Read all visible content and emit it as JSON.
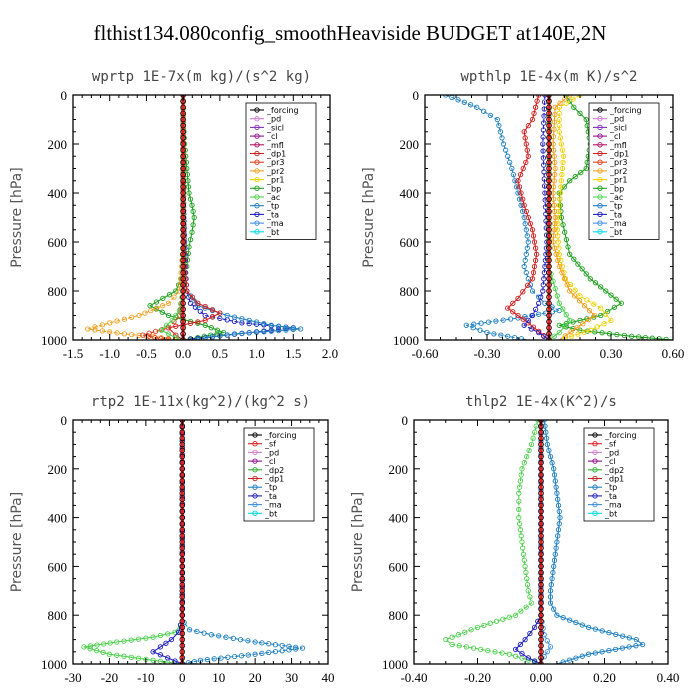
{
  "figure_title": "flthist134.080config_smoothHeaviside  BUDGET at140E,2N",
  "colors": {
    "forcing": "#000000",
    "sf": "#e02020",
    "pd": "#d080d0",
    "sicl": "#8030c0",
    "cl": "#901090",
    "mfl": "#b01060",
    "dp1": "#d02020",
    "dp2": "#30b030",
    "pr3": "#e04020",
    "pr2": "#f0a020",
    "pr1": "#f0d000",
    "bp": "#20a020",
    "ac": "#50d050",
    "tp": "#2080c0",
    "ta": "#2020c0",
    "ma": "#4090e0",
    "bt": "#00d8e8",
    "zero_line": "#e02020"
  },
  "chart_data": [
    {
      "type": "line",
      "title": "wprtp   1E-7x(m kg)/(s^2 kg)",
      "ylabel": "Pressure [hPa]",
      "xlim": [
        -1.5,
        2.0
      ],
      "ylim": [
        1000,
        0
      ],
      "xticks": [
        -1.5,
        -1.0,
        -0.5,
        0.0,
        0.5,
        1.0,
        1.5,
        2.0
      ],
      "xtick_labels": [
        "-1.5",
        "-1.0",
        "-0.5",
        "0.0",
        "0.5",
        "1.0",
        "1.5",
        "2.0"
      ],
      "yticks": [
        0,
        200,
        400,
        600,
        800,
        1000
      ],
      "ytick_labels": [
        "0",
        "200",
        "400",
        "600",
        "800",
        "1000"
      ],
      "legend": [
        "_forcing",
        "_pd",
        "_sicl",
        "_cl",
        "_mfl",
        "_dp1",
        "_pr3",
        "_pr2",
        "_pr1",
        "_bp",
        "_ac",
        "_tp",
        "_ta",
        "_ma",
        "_bt"
      ],
      "legend_keys": [
        "forcing",
        "pd",
        "sicl",
        "cl",
        "mfl",
        "dp1",
        "pr3",
        "pr2",
        "pr1",
        "bp",
        "ac",
        "tp",
        "ta",
        "ma",
        "bt"
      ],
      "legend_position": "top-right",
      "series": [
        {
          "key": "bp",
          "x": [
            0.0,
            0.0,
            0.02,
            0.05,
            0.08,
            0.12,
            0.15,
            0.12,
            0.08,
            0.05,
            -0.1,
            -0.45,
            -0.2,
            0.3,
            0.55,
            0.2,
            0.0
          ],
          "y": [
            0,
            100,
            200,
            300,
            400,
            450,
            500,
            560,
            620,
            700,
            800,
            860,
            900,
            940,
            970,
            990,
            1000
          ]
        },
        {
          "key": "ta",
          "x": [
            0.0,
            0.0,
            0.0,
            0.02,
            0.03,
            0.05,
            0.1,
            0.3,
            0.8,
            1.5,
            0.6,
            0.0
          ],
          "y": [
            0,
            200,
            400,
            600,
            700,
            800,
            850,
            900,
            930,
            950,
            980,
            1000
          ]
        },
        {
          "key": "tp",
          "x": [
            0.0,
            0.0,
            0.01,
            0.02,
            0.05,
            0.2,
            0.6,
            1.2,
            1.6,
            0.7,
            0.1
          ],
          "y": [
            0,
            300,
            500,
            700,
            800,
            860,
            900,
            940,
            955,
            975,
            1000
          ]
        },
        {
          "key": "pr2",
          "x": [
            0.0,
            0.0,
            0.0,
            -0.02,
            -0.05,
            -0.2,
            -0.6,
            -1.0,
            -1.3,
            -0.8,
            -0.3,
            0.0
          ],
          "y": [
            0,
            300,
            600,
            700,
            800,
            850,
            900,
            930,
            955,
            975,
            990,
            1000
          ]
        },
        {
          "key": "dp1",
          "x": [
            0.0,
            0.0,
            0.02,
            0.05,
            0.2,
            0.5,
            0.3,
            -0.2,
            -0.1,
            0.0
          ],
          "y": [
            0,
            500,
            700,
            800,
            850,
            890,
            920,
            950,
            980,
            1000
          ]
        },
        {
          "key": "pr3",
          "x": [
            0.0,
            0.0,
            0.0,
            -0.05,
            -0.2,
            -0.55,
            -0.3,
            0.0
          ],
          "y": [
            0,
            600,
            800,
            900,
            950,
            980,
            995,
            1000
          ]
        },
        {
          "key": "ac",
          "x": [
            0.0,
            0.0,
            0.0,
            -0.05,
            -0.15,
            -0.3,
            -0.1,
            0.0
          ],
          "y": [
            0,
            600,
            800,
            880,
            920,
            960,
            990,
            1000
          ]
        },
        {
          "key": "forcing",
          "x": [
            0.0,
            0.0
          ],
          "y": [
            0,
            1000
          ]
        }
      ]
    },
    {
      "type": "line",
      "title": "wpthlp   1E-4x(m K)/s^2",
      "ylabel": "Pressure [hPa]",
      "xlim": [
        -0.6,
        0.6
      ],
      "ylim": [
        1000,
        0
      ],
      "xticks": [
        -0.6,
        -0.3,
        0.0,
        0.3,
        0.6
      ],
      "xtick_labels": [
        "-0.60",
        "-0.30",
        "0.00",
        "0.30",
        "0.60"
      ],
      "yticks": [
        0,
        200,
        400,
        600,
        800,
        1000
      ],
      "ytick_labels": [
        "0",
        "200",
        "400",
        "600",
        "800",
        "1000"
      ],
      "legend": [
        "_forcing",
        "_pd",
        "_sicl",
        "_cl",
        "_mfl",
        "_dp1",
        "_pr3",
        "_pr2",
        "_pr1",
        "_bp",
        "_ac",
        "_tp",
        "_ta",
        "_ma",
        "_bt"
      ],
      "legend_keys": [
        "forcing",
        "pd",
        "sicl",
        "cl",
        "mfl",
        "dp1",
        "pr3",
        "pr2",
        "pr1",
        "bp",
        "ac",
        "tp",
        "ta",
        "ma",
        "bt"
      ],
      "legend_position": "top-right",
      "series": [
        {
          "key": "bp",
          "x": [
            0.08,
            0.12,
            0.18,
            0.2,
            0.18,
            0.1,
            0.05,
            0.06,
            0.1,
            0.2,
            0.35,
            0.25,
            0.05,
            0.15,
            0.4,
            0.6
          ],
          "y": [
            0,
            50,
            100,
            200,
            300,
            350,
            400,
            500,
            650,
            750,
            850,
            900,
            940,
            960,
            985,
            1000
          ]
        },
        {
          "key": "tp",
          "x": [
            -0.5,
            -0.35,
            -0.25,
            -0.22,
            -0.18,
            -0.15,
            -0.12,
            -0.1,
            -0.12,
            -0.08,
            -0.02,
            0.05,
            -0.15,
            -0.4,
            -0.3,
            -0.1
          ],
          "y": [
            0,
            50,
            100,
            200,
            300,
            400,
            500,
            600,
            700,
            800,
            850,
            880,
            910,
            940,
            970,
            1000
          ]
        },
        {
          "key": "dp1",
          "x": [
            -0.05,
            -0.08,
            -0.12,
            -0.1,
            -0.15,
            -0.12,
            -0.08,
            -0.06,
            -0.08,
            -0.15,
            -0.2,
            -0.1,
            0.0
          ],
          "y": [
            0,
            100,
            150,
            250,
            350,
            450,
            550,
            650,
            750,
            830,
            870,
            930,
            1000
          ]
        },
        {
          "key": "pr1",
          "x": [
            0.15,
            0.05,
            0.05,
            0.07,
            0.06,
            0.05,
            0.04,
            0.05,
            0.08,
            0.15,
            0.25,
            0.3,
            0.2,
            0.05
          ],
          "y": [
            0,
            50,
            150,
            250,
            350,
            450,
            550,
            650,
            750,
            820,
            870,
            920,
            960,
            1000
          ]
        },
        {
          "key": "pr2",
          "x": [
            0.1,
            0.03,
            0.02,
            0.03,
            0.02,
            0.03,
            0.02,
            0.05,
            0.1,
            0.22,
            0.05
          ],
          "y": [
            0,
            50,
            200,
            300,
            400,
            500,
            600,
            700,
            800,
            900,
            1000
          ]
        },
        {
          "key": "ta",
          "x": [
            -0.02,
            -0.03,
            -0.02,
            -0.01,
            -0.02,
            -0.03,
            -0.05,
            -0.08,
            -0.12,
            -0.05,
            0.0
          ],
          "y": [
            0,
            200,
            400,
            600,
            700,
            800,
            850,
            900,
            940,
            970,
            1000
          ]
        },
        {
          "key": "ac",
          "x": [
            0.0,
            0.0,
            0.0,
            0.05,
            0.1,
            0.05,
            0.0
          ],
          "y": [
            0,
            400,
            700,
            850,
            920,
            970,
            1000
          ]
        },
        {
          "key": "forcing",
          "x": [
            0.0,
            0.0
          ],
          "y": [
            0,
            1000
          ]
        }
      ]
    },
    {
      "type": "line",
      "title": "rtp2   1E-11x(kg^2)/(kg^2 s)",
      "ylabel": "Pressure [hPa]",
      "xlim": [
        -30,
        40
      ],
      "ylim": [
        1000,
        0
      ],
      "xticks": [
        -30,
        -20,
        -10,
        0,
        10,
        20,
        30,
        40
      ],
      "xtick_labels": [
        "-30",
        "-20",
        "-10",
        "0",
        "10",
        "20",
        "30",
        "40"
      ],
      "yticks": [
        0,
        200,
        400,
        600,
        800,
        1000
      ],
      "ytick_labels": [
        "0",
        "200",
        "400",
        "600",
        "800",
        "1000"
      ],
      "legend": [
        "_forcing",
        "_sf",
        "_pd",
        "_cl",
        "_dp2",
        "_dp1",
        "_tp",
        "_ta",
        "_ma",
        "_bt"
      ],
      "legend_keys": [
        "forcing",
        "sf",
        "pd",
        "cl",
        "dp2",
        "dp1",
        "tp",
        "ta",
        "ma",
        "bt"
      ],
      "legend_position": "top-right",
      "series": [
        {
          "key": "ac",
          "x": [
            0.0,
            0.0,
            -0.5,
            -2.0,
            -8.0,
            -18.0,
            -27.0,
            -20.0,
            -8.0,
            0.0
          ],
          "y": [
            0,
            800,
            840,
            870,
            890,
            910,
            930,
            960,
            985,
            1000
          ]
        },
        {
          "key": "tp",
          "x": [
            0.0,
            0.0,
            0.5,
            2.0,
            8.0,
            20.0,
            33.0,
            20.0,
            5.0,
            0.0
          ],
          "y": [
            0,
            800,
            830,
            860,
            880,
            910,
            935,
            960,
            985,
            1000
          ]
        },
        {
          "key": "ta",
          "x": [
            0.0,
            0.0,
            -0.5,
            -1.0,
            -3.0,
            -6.0,
            -8.0,
            -4.0,
            0.0
          ],
          "y": [
            0,
            800,
            840,
            870,
            900,
            930,
            950,
            975,
            1000
          ]
        },
        {
          "key": "forcing",
          "x": [
            0.0,
            0.0
          ],
          "y": [
            0,
            1000
          ]
        }
      ]
    },
    {
      "type": "line",
      "title": "thlp2   1E-4x(K^2)/s",
      "ylabel": "Pressure [hPa]",
      "xlim": [
        -0.4,
        0.4
      ],
      "ylim": [
        1000,
        0
      ],
      "xticks": [
        -0.4,
        -0.2,
        0.0,
        0.2,
        0.4
      ],
      "xtick_labels": [
        "-0.40",
        "-0.20",
        "0.00",
        "0.20",
        "0.40"
      ],
      "yticks": [
        0,
        200,
        400,
        600,
        800,
        1000
      ],
      "ytick_labels": [
        "0",
        "200",
        "400",
        "600",
        "800",
        "1000"
      ],
      "legend": [
        "_forcing",
        "_sf",
        "_pd",
        "_cl",
        "_dp2",
        "_dp1",
        "_tp",
        "_ta",
        "_ma",
        "_bt"
      ],
      "legend_keys": [
        "forcing",
        "sf",
        "pd",
        "cl",
        "dp2",
        "dp1",
        "tp",
        "ta",
        "ma",
        "bt"
      ],
      "legend_position": "top-right",
      "series": [
        {
          "key": "tp",
          "x": [
            0.01,
            0.02,
            0.04,
            0.05,
            0.06,
            0.05,
            0.04,
            0.03,
            0.03,
            0.05,
            0.15,
            0.3,
            0.32,
            0.15,
            0.05
          ],
          "y": [
            0,
            100,
            200,
            300,
            400,
            500,
            600,
            700,
            750,
            800,
            850,
            900,
            920,
            960,
            1000
          ]
        },
        {
          "key": "ac",
          "x": [
            -0.01,
            -0.03,
            -0.06,
            -0.07,
            -0.07,
            -0.06,
            -0.05,
            -0.04,
            -0.03,
            -0.08,
            -0.2,
            -0.3,
            -0.28,
            -0.1,
            0.0
          ],
          "y": [
            0,
            100,
            200,
            300,
            400,
            500,
            600,
            700,
            750,
            800,
            850,
            900,
            920,
            960,
            1000
          ]
        },
        {
          "key": "ta",
          "x": [
            0.0,
            0.0,
            -0.02,
            -0.05,
            -0.08,
            -0.04,
            0.0
          ],
          "y": [
            0,
            800,
            850,
            900,
            940,
            975,
            1000
          ]
        },
        {
          "key": "ma",
          "x": [
            0.0,
            0.0,
            0.01,
            0.03,
            0.01,
            0.0
          ],
          "y": [
            0,
            800,
            880,
            930,
            970,
            1000
          ]
        },
        {
          "key": "forcing",
          "x": [
            0.0,
            0.0
          ],
          "y": [
            0,
            1000
          ]
        }
      ]
    }
  ]
}
